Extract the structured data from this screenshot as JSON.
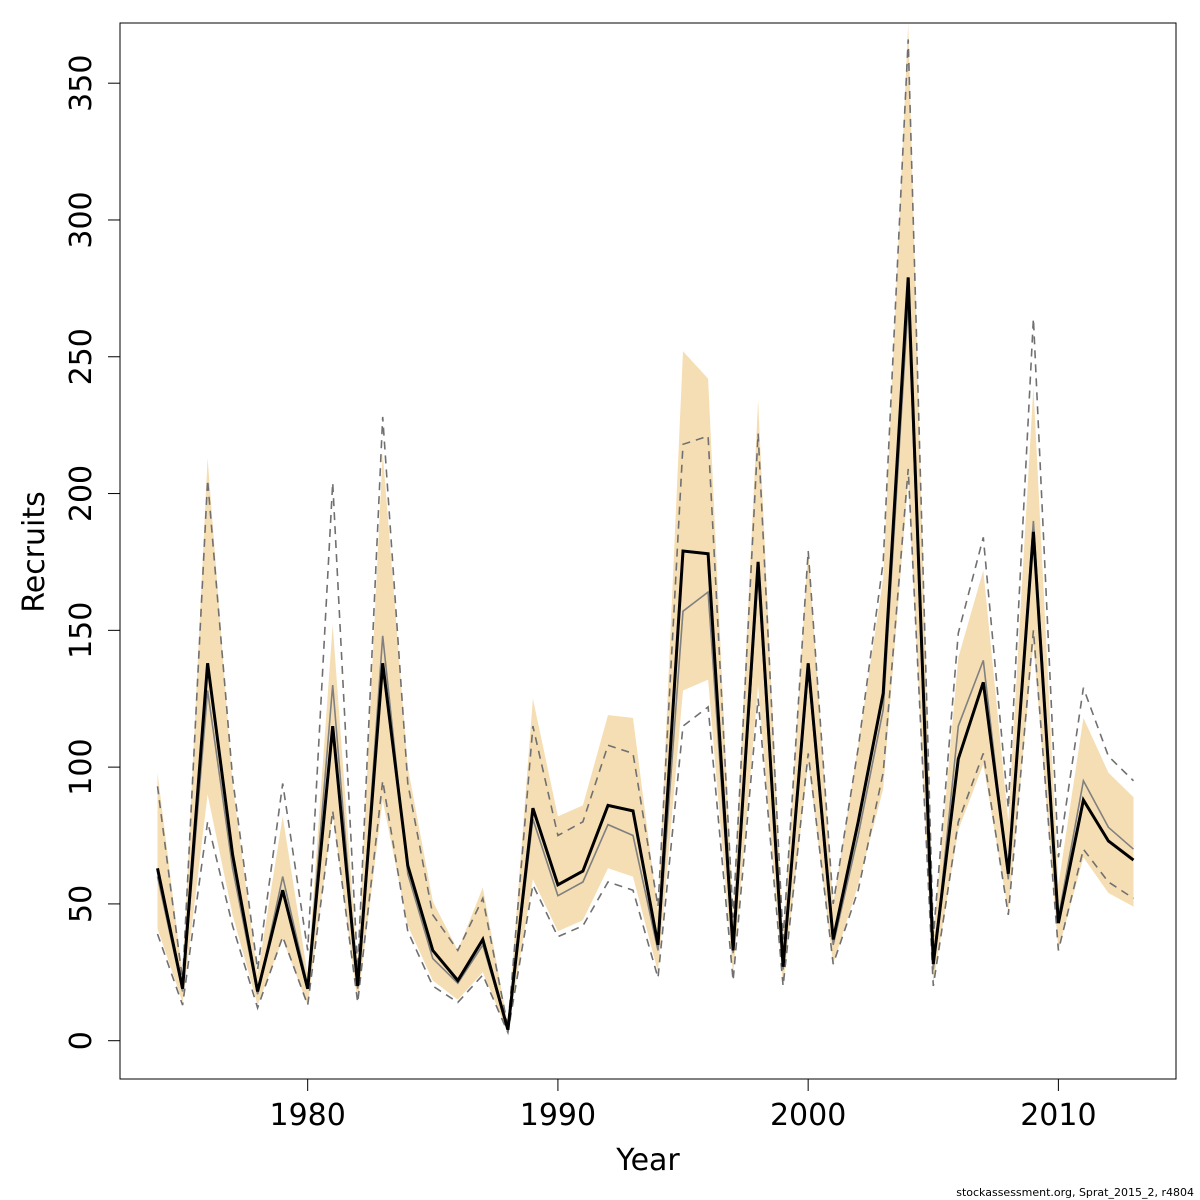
{
  "chart_data": {
    "type": "line",
    "xlabel": "Year",
    "ylabel": "Recruits",
    "xlim": [
      1972.5,
      2014.7
    ],
    "ylim": [
      -14,
      372
    ],
    "x_ticks": [
      1980,
      1990,
      2000,
      2010
    ],
    "y_ticks": [
      0,
      50,
      100,
      150,
      200,
      250,
      300,
      350
    ],
    "grid": false,
    "legend": "none",
    "footer": "stockassessment.org, Sprat_2015_2, r4804",
    "colors": {
      "band": "#f5deb3",
      "main": "#000000",
      "secondary": "#808080",
      "dashed": "#707070"
    },
    "x": [
      1974,
      1975,
      1976,
      1977,
      1978,
      1979,
      1980,
      1981,
      1982,
      1983,
      1984,
      1985,
      1986,
      1987,
      1988,
      1989,
      1990,
      1991,
      1992,
      1993,
      1994,
      1995,
      1996,
      1997,
      1998,
      1999,
      2000,
      2001,
      2002,
      2003,
      2004,
      2005,
      2006,
      2007,
      2008,
      2009,
      2010,
      2011,
      2012,
      2013
    ],
    "series": [
      {
        "role": "estimate",
        "values": [
          63,
          19,
          138,
          68,
          18,
          55,
          19,
          115,
          20,
          138,
          64,
          33,
          22,
          37,
          4,
          85,
          57,
          62,
          86,
          84,
          35,
          179,
          178,
          33,
          175,
          27,
          138,
          37,
          80,
          127,
          279,
          28,
          103,
          131,
          61,
          186,
          43,
          88,
          73,
          66
        ]
      },
      {
        "role": "band_upper",
        "values": [
          98,
          24,
          213,
          94,
          24,
          82,
          24,
          152,
          27,
          215,
          100,
          51,
          33,
          56,
          6,
          125,
          82,
          86,
          119,
          118,
          47,
          252,
          242,
          45,
          234,
          37,
          180,
          50,
          108,
          169,
          372,
          38,
          140,
          172,
          80,
          239,
          57,
          118,
          98,
          89
        ]
      },
      {
        "role": "band_lower",
        "values": [
          41,
          14,
          90,
          46,
          13,
          37,
          13,
          83,
          14,
          88,
          42,
          22,
          15,
          25,
          3,
          59,
          40,
          44,
          63,
          60,
          25,
          128,
          132,
          24,
          130,
          20,
          102,
          28,
          57,
          92,
          205,
          21,
          77,
          101,
          47,
          145,
          33,
          67,
          54,
          49
        ]
      },
      {
        "role": "reference",
        "values": [
          60,
          18,
          128,
          63,
          17,
          60,
          20,
          130,
          19,
          148,
          61,
          30,
          21,
          35,
          4,
          81,
          53,
          58,
          79,
          75,
          33,
          157,
          164,
          32,
          170,
          26,
          135,
          35,
          75,
          121,
          270,
          26,
          115,
          139,
          59,
          190,
          45,
          95,
          78,
          70
        ]
      },
      {
        "role": "reference_upper",
        "values": [
          93,
          22,
          205,
          96,
          26,
          94,
          33,
          204,
          26,
          228,
          94,
          46,
          33,
          52,
          5,
          115,
          75,
          80,
          108,
          105,
          49,
          218,
          221,
          45,
          222,
          37,
          179,
          50,
          107,
          175,
          366,
          38,
          149,
          184,
          85,
          264,
          67,
          129,
          104,
          95
        ]
      },
      {
        "role": "reference_lower",
        "values": [
          39,
          13,
          80,
          42,
          12,
          38,
          13,
          84,
          14,
          95,
          40,
          20,
          14,
          24,
          3,
          57,
          38,
          42,
          58,
          55,
          23,
          115,
          122,
          22,
          125,
          20,
          105,
          28,
          55,
          98,
          209,
          20,
          80,
          105,
          46,
          150,
          33,
          70,
          58,
          52
        ]
      }
    ]
  }
}
